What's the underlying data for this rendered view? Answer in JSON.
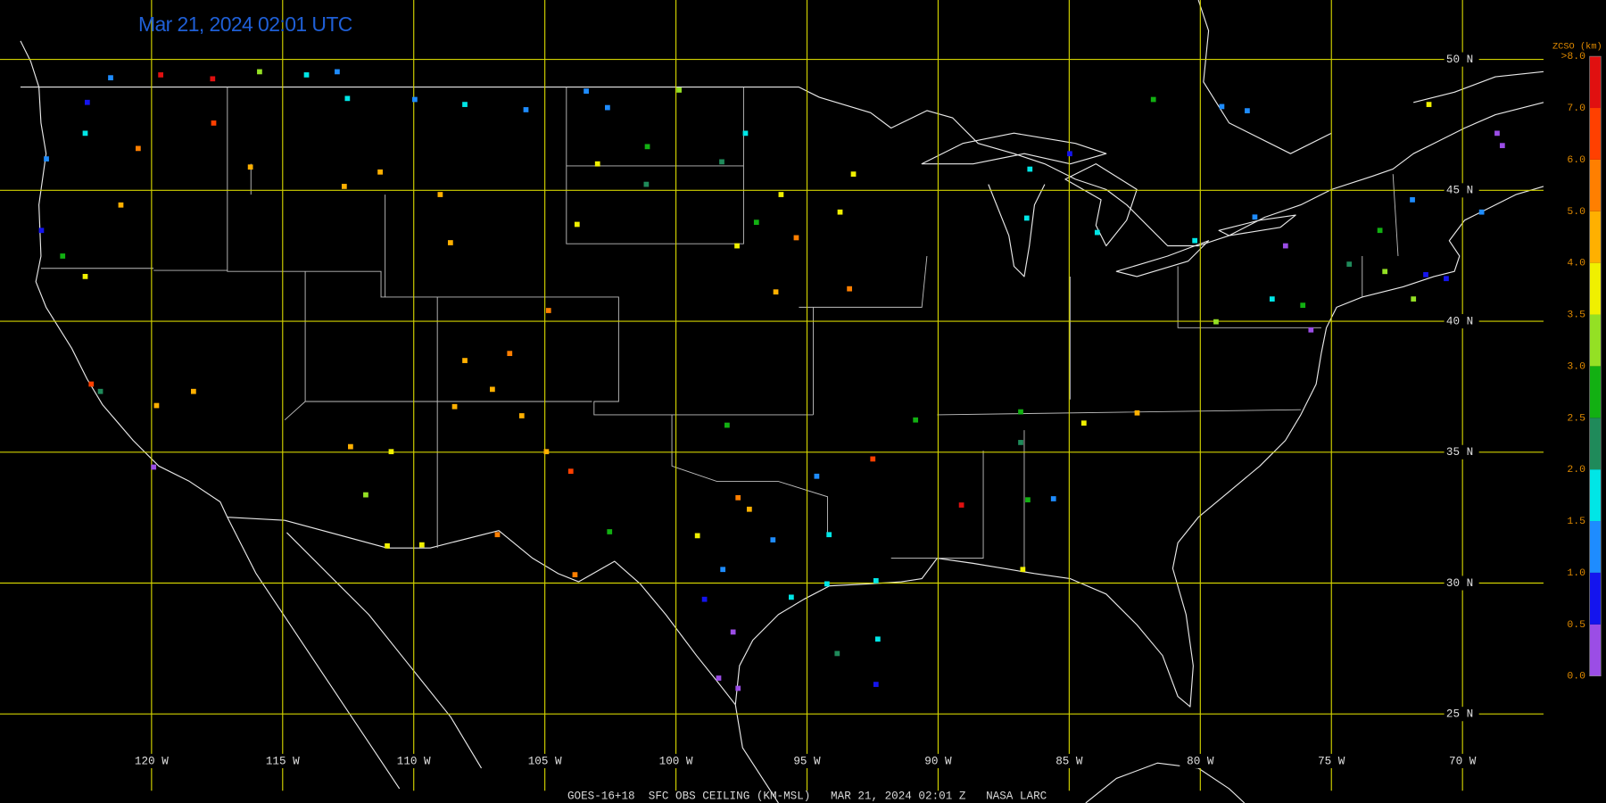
{
  "timestamp": "Mar 21, 2024 02:01 UTC",
  "map": {
    "xlim": [
      -125.78,
      -66.91
    ],
    "ylim": [
      21.6,
      52.27
    ],
    "grid_color": "#d2d200",
    "lat_lines": [
      {
        "value": 50,
        "label": "50 N"
      },
      {
        "value": 45,
        "label": "45 N"
      },
      {
        "value": 40,
        "label": "40 N"
      },
      {
        "value": 35,
        "label": "35 N"
      },
      {
        "value": 30,
        "label": "30 N"
      },
      {
        "value": 25,
        "label": "25 N"
      }
    ],
    "lon_lines": [
      {
        "value": -120,
        "label": "120 W"
      },
      {
        "value": -115,
        "label": "115 W"
      },
      {
        "value": -110,
        "label": "110 W"
      },
      {
        "value": -105,
        "label": "105 W"
      },
      {
        "value": -100,
        "label": "100 W"
      },
      {
        "value": -95,
        "label": "95 W"
      },
      {
        "value": -90,
        "label": "90 W"
      },
      {
        "value": -85,
        "label": "85 W"
      },
      {
        "value": -80,
        "label": "80 W"
      },
      {
        "value": -75,
        "label": "75 W"
      },
      {
        "value": -70,
        "label": "70 W"
      }
    ],
    "stations": {
      "lon": [
        -119.65,
        -117.67,
        -115.88,
        -114.09,
        -112.92,
        -121.56,
        -122.45,
        -122.53,
        -124.01,
        -120.51,
        -117.63,
        -116.23,
        -121.17,
        -123.39,
        -122.53,
        -122.3,
        -121.95,
        -119.81,
        -118.4,
        -119.92,
        -112.53,
        -109.96,
        -108.05,
        -105.72,
        -111.28,
        -112.65,
        -108.99,
        -108.6,
        -103.77,
        -102.99,
        -101.09,
        -99.88,
        -98.25,
        -104.86,
        -106.34,
        -108.05,
        -107.0,
        -108.44,
        -105.88,
        -104.94,
        -104.01,
        -110.86,
        -112.41,
        -111.83,
        -111.01,
        -109.69,
        -106.81,
        -102.53,
        -103.85,
        -98.05,
        -97.63,
        -97.2,
        -96.3,
        -99.18,
        -98.21,
        -98.91,
        -97.82,
        -98.37,
        -97.63,
        -95.6,
        -94.24,
        -92.37,
        -92.3,
        -92.37,
        -93.85,
        -94.63,
        -92.49,
        -94.16,
        -90.86,
        -89.11,
        -86.58,
        -86.77,
        -84.44,
        -82.41,
        -86.85,
        -95.41,
        -93.38,
        -93.74,
        -95.99,
        -93.23,
        -96.93,
        -86.5,
        -84.98,
        -86.62,
        -83.93,
        -81.79,
        -79.18,
        -78.21,
        -80.21,
        -77.92,
        -76.09,
        -77.26,
        -79.4,
        -71.28,
        -68.68,
        -68.48,
        -71.91,
        -72.96,
        -71.4,
        -70.62,
        -73.15,
        -74.32,
        -76.75,
        -75.78,
        -71.87,
        -124.2,
        -97.35,
        -103.42,
        -102.61,
        -101.13,
        -97.67,
        -96.19,
        -69.27,
        -86.85,
        -85.6
      ],
      "lat": [
        49.41,
        49.26,
        49.53,
        49.41,
        49.53,
        49.3,
        48.36,
        47.18,
        46.2,
        46.6,
        47.57,
        45.89,
        44.44,
        42.49,
        41.71,
        37.6,
        37.32,
        36.78,
        37.32,
        34.43,
        48.51,
        48.47,
        48.28,
        48.08,
        45.7,
        45.15,
        44.84,
        43.0,
        43.7,
        46.01,
        46.67,
        48.83,
        46.09,
        40.41,
        38.77,
        38.5,
        37.4,
        36.74,
        36.39,
        35.02,
        34.27,
        35.02,
        35.21,
        33.37,
        31.42,
        31.46,
        31.85,
        31.96,
        30.32,
        36.03,
        33.26,
        32.82,
        31.65,
        31.81,
        30.52,
        29.38,
        28.13,
        26.37,
        25.98,
        29.46,
        29.97,
        30.09,
        27.86,
        26.13,
        27.31,
        34.08,
        34.74,
        31.85,
        36.23,
        32.98,
        33.18,
        30.52,
        36.11,
        36.5,
        36.54,
        43.19,
        41.24,
        44.17,
        44.84,
        45.62,
        43.78,
        45.81,
        46.4,
        43.94,
        43.39,
        48.47,
        48.2,
        48.04,
        43.08,
        43.98,
        40.61,
        40.85,
        39.98,
        48.28,
        47.18,
        46.71,
        44.64,
        41.9,
        41.78,
        41.63,
        43.47,
        42.18,
        42.88,
        39.67,
        40.85,
        43.47,
        47.18,
        48.79,
        48.16,
        45.23,
        42.88,
        41.12,
        44.17,
        35.37,
        33.22
      ],
      "ceiling": [
        7.5,
        7.5,
        3.2,
        1.8,
        1.2,
        1.2,
        0.8,
        1.8,
        1.2,
        5.5,
        6.5,
        4.5,
        4.5,
        2.8,
        3.8,
        6.5,
        2.2,
        4.5,
        4.5,
        0.3,
        1.8,
        1.2,
        1.8,
        1.2,
        4.5,
        4.5,
        4.5,
        4.5,
        3.8,
        3.8,
        2.8,
        3.2,
        2.2,
        5.5,
        5.5,
        4.5,
        4.5,
        4.5,
        4.5,
        4.5,
        6.5,
        3.8,
        4.5,
        3.2,
        3.8,
        3.8,
        5.5,
        2.8,
        5.5,
        2.8,
        5.5,
        4.5,
        1.2,
        3.8,
        1.2,
        0.8,
        0.3,
        0.3,
        0.3,
        1.8,
        1.8,
        1.8,
        1.8,
        0.8,
        2.2,
        1.2,
        6.5,
        1.8,
        2.8,
        7.5,
        2.8,
        3.8,
        3.8,
        4.5,
        2.8,
        5.5,
        5.5,
        3.8,
        3.8,
        3.8,
        2.8,
        1.8,
        0.8,
        1.8,
        1.8,
        2.8,
        1.2,
        1.2,
        1.8,
        1.2,
        2.8,
        1.8,
        3.2,
        3.8,
        0.3,
        0.3,
        1.2,
        3.2,
        0.8,
        0.8,
        2.8,
        2.2,
        0.3,
        0.3,
        3.2,
        0.8,
        1.8,
        1.2,
        1.2,
        2.2,
        3.8,
        4.5,
        1.2,
        2.2,
        1.2
      ]
    }
  },
  "colorbar": {
    "title": "ZCSO (km)",
    "levels": [
      {
        "value": 0,
        "label": "0.0"
      },
      {
        "value": 0.5,
        "label": "0.5"
      },
      {
        "value": 1,
        "label": "1.0"
      },
      {
        "value": 1.5,
        "label": "1.5"
      },
      {
        "value": 2,
        "label": "2.0"
      },
      {
        "value": 2.5,
        "label": "2.5"
      },
      {
        "value": 3,
        "label": "3.0"
      },
      {
        "value": 3.5,
        "label": "3.5"
      },
      {
        "value": 4,
        "label": "4.0"
      },
      {
        "value": 5,
        "label": "5.0"
      },
      {
        "value": 6,
        "label": "6.0"
      },
      {
        "value": 7,
        "label": "7.0"
      },
      {
        "value": 8,
        "label": ">8.0"
      }
    ],
    "colors": [
      "#9b4de6",
      "#1414ee",
      "#1e8cff",
      "#00e6e6",
      "#1f8a5a",
      "#12b012",
      "#94e024",
      "#f0f000",
      "#ffb000",
      "#ff7f00",
      "#ff4000",
      "#e01010"
    ],
    "label_color": "#e08a00"
  },
  "footer": "GOES-16+18  SFC OBS CEILING (KM-MSL)   MAR 21, 2024 02:01 Z   NASA LARC"
}
